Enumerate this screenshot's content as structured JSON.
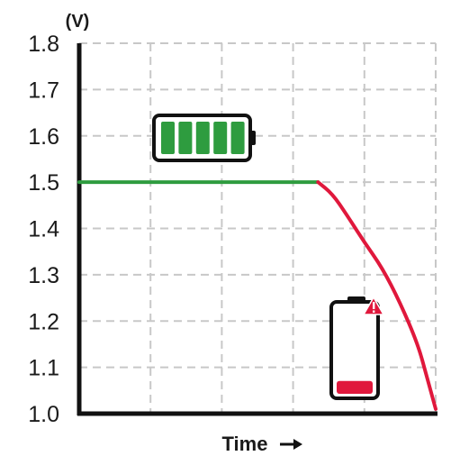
{
  "chart_data": {
    "type": "line",
    "y_unit_label": "(V)",
    "xlabel": "Time",
    "x_arrow_icon": "right-arrow-icon",
    "ylim": [
      1.0,
      1.8
    ],
    "yticks": [
      "1.8",
      "1.7",
      "1.6",
      "1.5",
      "1.4",
      "1.3",
      "1.2",
      "1.1",
      "1.0"
    ],
    "xlim": [
      0,
      100
    ],
    "grid": true,
    "series": [
      {
        "color": "#2e9c3f",
        "points": [
          [
            0,
            1.5
          ],
          [
            67,
            1.5
          ]
        ]
      },
      {
        "color": "#e0183c",
        "points": [
          [
            67,
            1.5
          ],
          [
            71,
            1.475
          ],
          [
            75,
            1.43
          ],
          [
            80,
            1.37
          ],
          [
            85,
            1.315
          ],
          [
            90,
            1.24
          ],
          [
            95,
            1.15
          ],
          [
            97.5,
            1.08
          ],
          [
            100,
            1.01
          ]
        ]
      }
    ],
    "icons": [
      {
        "name": "full-battery-icon",
        "color": "#2e9c3f",
        "level": 1.0
      },
      {
        "name": "low-battery-icon",
        "color": "#e0183c",
        "level": 0.15,
        "warning": "warning-triangle-icon"
      }
    ]
  }
}
